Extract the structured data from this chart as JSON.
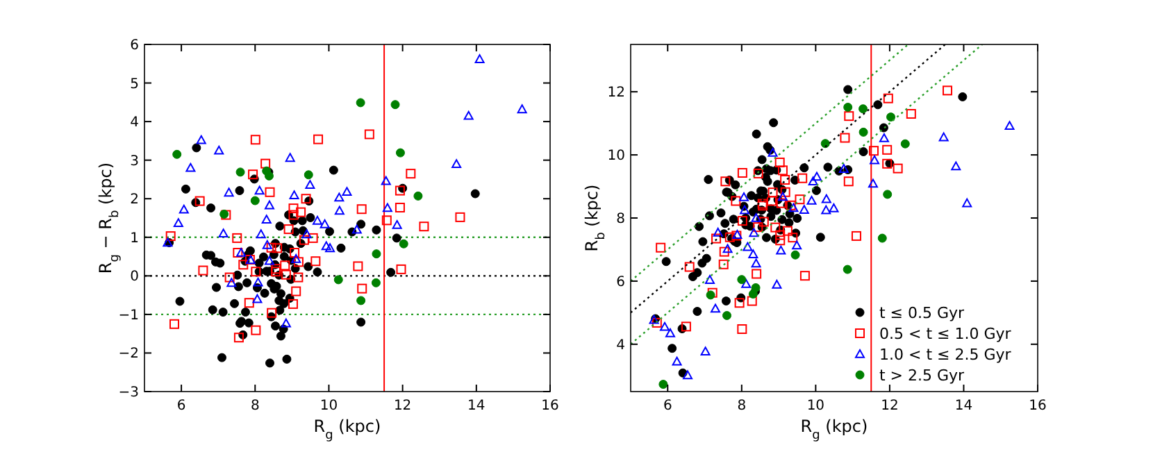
{
  "chart_data": [
    {
      "type": "scatter",
      "xlabel": "R$_{g}$ (kpc)",
      "ylabel": "R$_{g}$ − R$_{b}$ (kpc)",
      "xlim": [
        5,
        16
      ],
      "ylim": [
        -3,
        6
      ],
      "xticks": [
        6,
        8,
        10,
        12,
        14,
        16
      ],
      "yticks": [
        -3,
        -2,
        -1,
        0,
        1,
        2,
        3,
        4,
        5,
        6
      ],
      "grid": false,
      "legend": false,
      "ref_lines": [
        {
          "axis": "y",
          "value": 0,
          "color": "#000000",
          "line_style": "dotted"
        },
        {
          "axis": "y",
          "value": 1,
          "color": "#2ca02c",
          "line_style": "dotted"
        },
        {
          "axis": "y",
          "value": -1,
          "color": "#2ca02c",
          "line_style": "dotted"
        },
        {
          "axis": "x",
          "value": 11.5,
          "color": "#ff0000",
          "line_style": "solid"
        }
      ],
      "series": [
        {
          "color": "#000000",
          "marker": "circle",
          "x": [
            6.41,
            6.12,
            6.39,
            6.8,
            7.58,
            7.98,
            8.37,
            10.13,
            9.46,
            8.91,
            9.5,
            8.67,
            9.05,
            9.28,
            9.3,
            9.09,
            10.02,
            10.63,
            10.87,
            11.29,
            12.0,
            13.97,
            11.84,
            11.68,
            10.87,
            10.33,
            9.69,
            9.44,
            9.09,
            8.98,
            8.79,
            8.51,
            8.23,
            8.11,
            8.31,
            8.11,
            7.81,
            7.73,
            7.87,
            8.55,
            8.79,
            8.65,
            8.97,
            8.44,
            8.58,
            8.52,
            8.7,
            8.94,
            8.78,
            8.65,
            8.26,
            8.06,
            7.78,
            7.52,
            7.55,
            6.8,
            6.93,
            7.05,
            6.95,
            5.96,
            6.85,
            7.13,
            7.44,
            7.74,
            7.59,
            7.63,
            7.83,
            7.67,
            8.44,
            8.67,
            8.55,
            8.7,
            8.77,
            7.1,
            8.4,
            8.86,
            5.67,
            6.68,
            9.24,
            8.94,
            8.54,
            8.4
          ],
          "values": [
            3.32,
            2.25,
            1.9,
            1.76,
            2.21,
            2.51,
            2.69,
            2.74,
            1.94,
            1.58,
            1.51,
            1.29,
            1.43,
            1.43,
            1.17,
            1.14,
            1.15,
            1.14,
            1.34,
            1.19,
            2.27,
            2.13,
            0.98,
            0.09,
            -1.2,
            0.72,
            0.1,
            0.24,
            0.19,
            0.4,
            0.5,
            0.55,
            0.49,
            0.33,
            0.12,
            0.11,
            0.55,
            0.38,
            0.65,
            0.84,
            0.74,
            0.02,
            -0.09,
            -0.2,
            -0.27,
            -0.34,
            -0.46,
            -0.58,
            -0.72,
            -0.64,
            -0.45,
            -0.31,
            -0.18,
            0.02,
            -0.28,
            0.53,
            0.36,
            0.33,
            -0.3,
            -0.66,
            -0.88,
            -0.94,
            -0.72,
            -0.94,
            -1.23,
            -1.18,
            -1.22,
            -1.53,
            -1.06,
            -0.89,
            -1.3,
            -1.56,
            -1.38,
            -2.12,
            -2.26,
            -2.16,
            0.86,
            0.54,
            0.84,
            0.7,
            0.29,
            0.12
          ]
        },
        {
          "color": "#ff0000",
          "marker": "square",
          "x": [
            8.01,
            9.71,
            11.1,
            8.28,
            7.94,
            8.4,
            6.5,
            7.21,
            9.38,
            9.04,
            9.24,
            9.04,
            10.89,
            8.91,
            9.33,
            9.57,
            5.71,
            7.51,
            7.53,
            6.59,
            7.31,
            7.68,
            7.86,
            8.02,
            8.44,
            8.6,
            8.57,
            8.56,
            8.81,
            9.07,
            9.18,
            8.84,
            9.17,
            9.64,
            10.79,
            10.9,
            7.84,
            9.11,
            9.03,
            8.45,
            8.02,
            5.81,
            7.56,
            11.57,
            11.93,
            11.93,
            12.22,
            12.58,
            11.96,
            13.56
          ],
          "values": [
            3.53,
            3.54,
            3.67,
            2.91,
            2.63,
            2.17,
            1.94,
            1.58,
            2.0,
            1.75,
            1.65,
            1.58,
            1.73,
            1.21,
            0.93,
            0.98,
            1.03,
            0.98,
            0.6,
            0.14,
            -0.04,
            0.29,
            0.42,
            0.11,
            0.73,
            0.72,
            0.18,
            0.11,
            0.27,
            0.6,
            0.36,
            0.03,
            -0.04,
            0.38,
            0.25,
            -0.33,
            -0.7,
            -0.4,
            -0.73,
            -0.96,
            -1.41,
            -1.25,
            -1.6,
            1.44,
            2.21,
            1.77,
            2.65,
            1.28,
            0.17,
            1.52
          ]
        },
        {
          "color": "#0000ff",
          "marker": "triangle",
          "x": [
            6.54,
            7.02,
            6.25,
            6.07,
            5.92,
            5.63,
            7.29,
            8.12,
            8.39,
            8.31,
            8.95,
            9.06,
            9.49,
            9.69,
            9.89,
            10.28,
            10.29,
            10.49,
            10.76,
            7.14,
            9.93,
            10.03,
            9.4,
            8.16,
            7.62,
            7.88,
            7.36,
            8.08,
            8.06,
            8.39,
            9.11,
            8.84,
            8.33,
            11.55,
            11.59,
            11.85,
            13.46,
            13.79,
            14.09,
            15.24
          ],
          "values": [
            3.52,
            3.25,
            2.8,
            1.72,
            1.37,
            0.86,
            2.16,
            2.21,
            1.83,
            1.46,
            3.06,
            2.09,
            2.36,
            1.43,
            1.34,
            2.03,
            1.69,
            2.18,
            1.2,
            1.1,
            0.77,
            0.72,
            1.08,
            1.08,
            0.6,
            0.41,
            -0.18,
            -0.17,
            -0.6,
            0.39,
            0.44,
            -1.23,
            0.8,
            2.46,
            1.76,
            1.32,
            2.9,
            4.15,
            5.62,
            4.32
          ]
        },
        {
          "color": "#008000",
          "marker": "circle",
          "x": [
            5.88,
            7.6,
            8.31,
            8.38,
            9.45,
            8.0,
            7.16,
            10.86,
            11.8,
            11.94,
            12.42,
            11.29,
            12.03,
            10.26,
            11.28,
            10.87
          ],
          "values": [
            3.15,
            2.69,
            2.72,
            2.59,
            2.62,
            1.95,
            1.6,
            4.49,
            4.44,
            3.19,
            2.07,
            0.57,
            0.83,
            -0.1,
            -0.18,
            -0.64
          ]
        }
      ]
    },
    {
      "type": "scatter",
      "xlabel": "R$_{g}$ (kpc)",
      "ylabel": "R$_{b}$ (kpc)",
      "xlim": [
        5,
        16
      ],
      "ylim": [
        2.5,
        13.5
      ],
      "xticks": [
        6,
        8,
        10,
        12,
        14,
        16
      ],
      "yticks": [
        4,
        6,
        8,
        10,
        12
      ],
      "grid": false,
      "legend": "bottom right",
      "ref_lines": [
        {
          "axis": "x",
          "value": 11.5,
          "color": "#ff0000",
          "line_style": "solid"
        }
      ],
      "series": [
        {
          "name": "t ≤ 0.5 Gyr",
          "color": "#000000",
          "marker": "circle",
          "x": [
            6.41,
            6.12,
            6.39,
            6.8,
            7.58,
            7.98,
            8.37,
            10.13,
            9.46,
            8.91,
            9.5,
            8.67,
            9.05,
            9.28,
            9.3,
            9.09,
            10.02,
            10.63,
            10.87,
            11.29,
            12.0,
            13.97,
            11.84,
            11.68,
            10.87,
            10.33,
            9.69,
            9.44,
            9.09,
            8.98,
            8.79,
            8.51,
            8.23,
            8.11,
            8.31,
            8.11,
            7.81,
            7.73,
            7.87,
            8.55,
            8.79,
            8.65,
            8.97,
            8.44,
            8.58,
            8.52,
            8.7,
            8.94,
            8.78,
            8.65,
            8.26,
            8.06,
            7.78,
            7.52,
            7.55,
            6.8,
            6.93,
            7.05,
            6.95,
            5.96,
            6.85,
            7.13,
            7.44,
            7.74,
            7.59,
            7.63,
            7.83,
            7.67,
            8.44,
            8.67,
            8.55,
            8.7,
            8.77,
            7.1,
            8.4,
            8.86,
            5.67,
            6.68,
            9.24,
            8.94,
            8.54,
            8.4
          ],
          "values": [
            3.09,
            3.87,
            4.49,
            5.04,
            5.37,
            5.47,
            5.68,
            7.39,
            7.52,
            7.33,
            7.99,
            7.38,
            7.62,
            7.85,
            8.13,
            7.95,
            8.87,
            9.49,
            9.53,
            10.1,
            9.73,
            11.84,
            10.86,
            11.59,
            12.07,
            9.61,
            9.59,
            9.2,
            8.9,
            8.58,
            8.29,
            7.96,
            7.74,
            7.78,
            8.19,
            8.0,
            7.26,
            7.35,
            7.22,
            7.71,
            8.05,
            8.63,
            9.06,
            8.64,
            8.85,
            8.86,
            9.16,
            9.52,
            9.5,
            9.29,
            8.71,
            8.37,
            7.96,
            7.5,
            7.83,
            6.27,
            6.57,
            6.72,
            7.25,
            6.62,
            7.73,
            8.07,
            8.16,
            8.68,
            8.82,
            8.81,
            9.05,
            9.2,
            9.5,
            9.56,
            9.85,
            10.26,
            10.15,
            9.22,
            10.66,
            11.02,
            4.81,
            6.14,
            8.4,
            8.24,
            8.25,
            8.28
          ]
        },
        {
          "name": "0.5 < t ≤ 1.0 Gyr",
          "color": "#ff0000",
          "marker": "square",
          "x": [
            8.01,
            9.71,
            11.1,
            8.28,
            7.94,
            8.4,
            6.5,
            7.21,
            9.38,
            9.04,
            9.24,
            9.04,
            10.89,
            8.91,
            9.33,
            9.57,
            5.71,
            7.51,
            7.53,
            6.59,
            7.31,
            7.68,
            7.86,
            8.02,
            8.44,
            8.6,
            8.57,
            8.56,
            8.81,
            9.07,
            9.18,
            8.84,
            9.17,
            9.64,
            10.79,
            10.9,
            7.84,
            9.11,
            9.03,
            8.45,
            8.02,
            5.81,
            7.56,
            11.57,
            11.93,
            11.93,
            12.22,
            12.58,
            11.96,
            13.56
          ],
          "values": [
            4.48,
            6.17,
            7.43,
            5.37,
            5.31,
            6.23,
            4.56,
            5.63,
            7.38,
            7.29,
            7.59,
            7.46,
            9.16,
            7.7,
            8.4,
            8.59,
            4.68,
            6.53,
            6.93,
            6.45,
            7.35,
            7.39,
            7.44,
            7.91,
            7.71,
            7.88,
            8.39,
            8.45,
            8.54,
            8.47,
            8.82,
            8.81,
            9.21,
            9.26,
            10.54,
            11.23,
            8.54,
            9.51,
            9.76,
            9.41,
            9.43,
            7.06,
            9.16,
            10.13,
            9.72,
            10.16,
            9.57,
            11.3,
            11.79,
            12.04
          ]
        },
        {
          "name": "1.0 < t ≤ 2.5 Gyr",
          "color": "#0000ff",
          "marker": "triangle",
          "x": [
            6.54,
            7.02,
            6.25,
            6.07,
            5.92,
            5.63,
            7.29,
            8.12,
            8.39,
            8.31,
            8.95,
            9.06,
            9.49,
            9.69,
            9.89,
            10.28,
            10.29,
            10.49,
            10.76,
            7.14,
            9.93,
            10.03,
            9.4,
            8.16,
            7.62,
            7.88,
            7.36,
            8.08,
            8.06,
            8.39,
            9.11,
            8.84,
            8.33,
            11.55,
            11.59,
            11.85,
            13.46,
            13.79,
            14.09,
            15.24
          ],
          "values": [
            3.02,
            3.77,
            3.45,
            4.35,
            4.55,
            4.77,
            5.13,
            5.91,
            6.56,
            6.85,
            5.89,
            6.97,
            7.13,
            8.26,
            8.55,
            8.25,
            8.6,
            8.31,
            9.56,
            6.04,
            9.16,
            9.31,
            8.32,
            7.08,
            7.02,
            7.47,
            7.54,
            8.25,
            8.66,
            8.0,
            8.67,
            10.07,
            7.53,
            9.09,
            9.83,
            10.53,
            10.56,
            9.64,
            8.47,
            10.92
          ]
        },
        {
          "name": "t > 2.5 Gyr",
          "color": "#008000",
          "marker": "circle",
          "x": [
            5.88,
            7.6,
            8.31,
            8.38,
            9.45,
            8.0,
            7.16,
            10.86,
            11.8,
            11.94,
            12.42,
            11.29,
            12.03,
            10.26,
            11.28,
            10.87
          ],
          "values": [
            2.73,
            4.91,
            5.59,
            5.79,
            6.83,
            6.05,
            5.56,
            6.37,
            7.36,
            8.75,
            10.35,
            10.72,
            11.2,
            10.36,
            11.46,
            11.51
          ]
        },
        {
          "type": "line",
          "color": "#000000",
          "marker": "none",
          "line_style": "dotted",
          "x": [
            5,
            13.5
          ],
          "values": [
            5,
            13.5
          ]
        },
        {
          "type": "line",
          "color": "#2ca02c",
          "marker": "none",
          "line_style": "dotted",
          "x": [
            5,
            12.5
          ],
          "values": [
            6,
            13.5
          ]
        },
        {
          "type": "line",
          "color": "#2ca02c",
          "marker": "none",
          "line_style": "dotted",
          "x": [
            5,
            14.5
          ],
          "values": [
            4,
            13.5
          ]
        }
      ]
    }
  ]
}
